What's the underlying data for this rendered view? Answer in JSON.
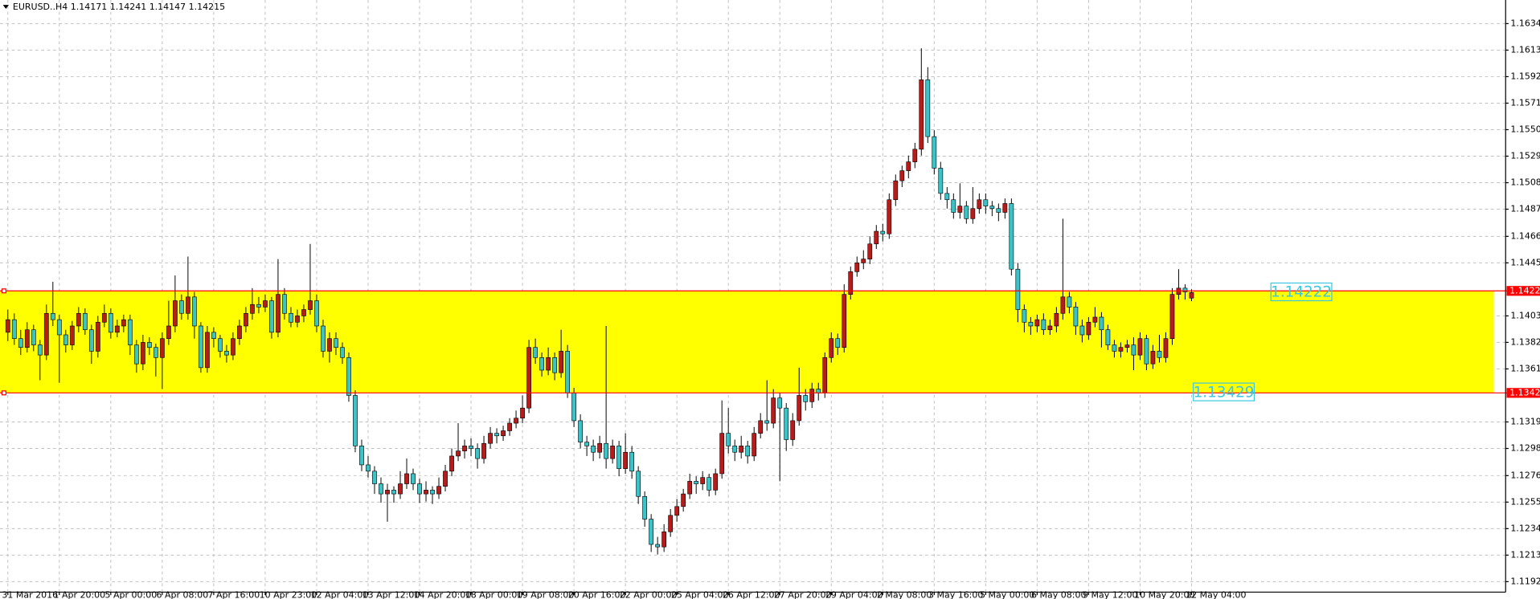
{
  "chart_data": {
    "type": "candlestick",
    "title": "EURUSD..H4  1.14171 1.14241 1.14147 1.14215",
    "up_color": "#b71c1c",
    "down_color": "#3cc3c8",
    "wick_color": "#000000",
    "grid": true,
    "ylim": [
      1.11842,
      1.16532
    ],
    "yticks": [
      1.16345,
      1.16135,
      1.15925,
      1.15715,
      1.15505,
      1.15295,
      1.15085,
      1.14875,
      {
        "value": 1.1466,
        "label": "1.14660"
      },
      {
        "value": 1.1445,
        "label": "1.14450"
      },
      {
        "value": 1.1403,
        "label": "1.14030"
      },
      {
        "value": 1.1382,
        "label": "1.13820"
      },
      {
        "value": 1.1361,
        "label": "1.13610"
      },
      {
        "value": 1.1319,
        "label": "1.13190"
      },
      {
        "value": 1.1298,
        "label": "1.12980"
      },
      1.12765,
      1.12555,
      1.12345,
      1.12135,
      1.11925
    ],
    "levels": [
      1.14228,
      {
        "value": 1.1342,
        "label": "1.13420"
      }
    ],
    "level_color": "#ff0000",
    "zone_color": "#ffff00",
    "annotations": [
      "1.14222",
      "1.13429"
    ],
    "annotation_color": "#3cc8e0",
    "categories": [
      "31 Mar 2016",
      null,
      null,
      null,
      null,
      null,
      null,
      null,
      "1 Apr 20:00",
      null,
      null,
      null,
      null,
      null,
      null,
      null,
      "5 Apr 00:00",
      null,
      null,
      null,
      null,
      null,
      null,
      null,
      "6 Apr 08:00",
      null,
      null,
      null,
      null,
      null,
      null,
      null,
      "7 Apr 16:00",
      null,
      null,
      null,
      null,
      null,
      null,
      null,
      "10 Apr 23:00",
      null,
      null,
      null,
      null,
      null,
      null,
      null,
      "12 Apr 04:00",
      null,
      null,
      null,
      null,
      null,
      null,
      null,
      "13 Apr 12:00",
      null,
      null,
      null,
      null,
      null,
      null,
      null,
      "14 Apr 20:00",
      null,
      null,
      null,
      null,
      null,
      null,
      null,
      "18 Apr 00:00",
      null,
      null,
      null,
      null,
      null,
      null,
      null,
      "19 Apr 08:00",
      null,
      null,
      null,
      null,
      null,
      null,
      null,
      "20 Apr 16:00",
      null,
      null,
      null,
      null,
      null,
      null,
      null,
      "22 Apr 00:00",
      null,
      null,
      null,
      null,
      null,
      null,
      null,
      "25 Apr 04:00",
      null,
      null,
      null,
      null,
      null,
      null,
      null,
      "26 Apr 12:00",
      null,
      null,
      null,
      null,
      null,
      null,
      null,
      "27 Apr 20:00",
      null,
      null,
      null,
      null,
      null,
      null,
      null,
      "29 Apr 04:00",
      null,
      null,
      null,
      null,
      null,
      null,
      null,
      "2 May 08:00",
      null,
      null,
      null,
      null,
      null,
      null,
      null,
      "3 May 16:00",
      null,
      null,
      null,
      null,
      null,
      null,
      null,
      "5 May 00:00",
      null,
      null,
      null,
      null,
      null,
      null,
      null,
      "6 May 08:00",
      null,
      null,
      null,
      null,
      null,
      null,
      null,
      "9 May 12:00",
      null,
      null,
      null,
      null,
      null,
      null,
      null,
      "10 May 20:00",
      null,
      null,
      null,
      null,
      null,
      null,
      null,
      "12 May 04:00"
    ],
    "ohlc": [
      [
        1.139,
        1.1408,
        1.1383,
        1.14
      ],
      [
        1.14,
        1.1405,
        1.138,
        1.1385
      ],
      [
        1.1385,
        1.1392,
        1.1372,
        1.1378
      ],
      [
        1.1378,
        1.1398,
        1.1374,
        1.1392
      ],
      [
        1.1392,
        1.1396,
        1.1375,
        1.138
      ],
      [
        1.138,
        1.1384,
        1.1352,
        1.1372
      ],
      [
        1.1372,
        1.1412,
        1.1368,
        1.1405
      ],
      [
        1.1405,
        1.143,
        1.1395,
        1.14
      ],
      [
        1.14,
        1.1404,
        1.135,
        1.1388
      ],
      [
        1.1388,
        1.1392,
        1.1374,
        1.138
      ],
      [
        1.138,
        1.1399,
        1.1376,
        1.1395
      ],
      [
        1.1395,
        1.141,
        1.139,
        1.1405
      ],
      [
        1.1405,
        1.1409,
        1.1388,
        1.1392
      ],
      [
        1.1392,
        1.1396,
        1.1365,
        1.1375
      ],
      [
        1.1375,
        1.1403,
        1.137,
        1.1398
      ],
      [
        1.1398,
        1.1412,
        1.1394,
        1.1405
      ],
      [
        1.1405,
        1.1409,
        1.1385,
        1.139
      ],
      [
        1.139,
        1.14,
        1.1386,
        1.1395
      ],
      [
        1.1395,
        1.1404,
        1.139,
        1.14
      ],
      [
        1.14,
        1.1404,
        1.1372,
        1.138
      ],
      [
        1.138,
        1.1384,
        1.1358,
        1.1365
      ],
      [
        1.1365,
        1.1388,
        1.136,
        1.1382
      ],
      [
        1.1382,
        1.1386,
        1.1372,
        1.1378
      ],
      [
        1.1378,
        1.1381,
        1.1355,
        1.137
      ],
      [
        1.137,
        1.139,
        1.1345,
        1.1385
      ],
      [
        1.1385,
        1.1415,
        1.138,
        1.1395
      ],
      [
        1.1395,
        1.1435,
        1.139,
        1.1415
      ],
      [
        1.1415,
        1.142,
        1.14,
        1.1405
      ],
      [
        1.1405,
        1.145,
        1.14,
        1.1418
      ],
      [
        1.1418,
        1.1422,
        1.1385,
        1.1395
      ],
      [
        1.1395,
        1.1398,
        1.1358,
        1.1362
      ],
      [
        1.1362,
        1.1395,
        1.1358,
        1.139
      ],
      [
        1.139,
        1.1394,
        1.1378,
        1.1385
      ],
      [
        1.1385,
        1.1388,
        1.137,
        1.1375
      ],
      [
        1.1375,
        1.138,
        1.1366,
        1.1372
      ],
      [
        1.1372,
        1.139,
        1.1368,
        1.1385
      ],
      [
        1.1385,
        1.14,
        1.138,
        1.1395
      ],
      [
        1.1395,
        1.141,
        1.139,
        1.1405
      ],
      [
        1.1405,
        1.1425,
        1.14,
        1.1412
      ],
      [
        1.1412,
        1.1418,
        1.1405,
        1.141
      ],
      [
        1.141,
        1.142,
        1.1406,
        1.1415
      ],
      [
        1.1415,
        1.1418,
        1.1385,
        1.139
      ],
      [
        1.139,
        1.1448,
        1.1386,
        1.142
      ],
      [
        1.142,
        1.1425,
        1.14,
        1.1405
      ],
      [
        1.1405,
        1.141,
        1.1394,
        1.1398
      ],
      [
        1.1398,
        1.1408,
        1.1394,
        1.1403
      ],
      [
        1.1403,
        1.1412,
        1.1398,
        1.1408
      ],
      [
        1.1408,
        1.146,
        1.1404,
        1.1415
      ],
      [
        1.1415,
        1.142,
        1.139,
        1.1395
      ],
      [
        1.1395,
        1.14,
        1.137,
        1.1375
      ],
      [
        1.1375,
        1.139,
        1.1366,
        1.1385
      ],
      [
        1.1385,
        1.139,
        1.1372,
        1.1378
      ],
      [
        1.1378,
        1.1382,
        1.1365,
        1.137
      ],
      [
        1.137,
        1.1374,
        1.1335,
        1.134
      ],
      [
        1.134,
        1.1344,
        1.1295,
        1.13
      ],
      [
        1.13,
        1.1305,
        1.128,
        1.1285
      ],
      [
        1.1285,
        1.1292,
        1.1275,
        1.128
      ],
      [
        1.128,
        1.1284,
        1.1262,
        1.127
      ],
      [
        1.127,
        1.1275,
        1.1255,
        1.1262
      ],
      [
        1.1262,
        1.127,
        1.124,
        1.1265
      ],
      [
        1.1265,
        1.1268,
        1.1255,
        1.1262
      ],
      [
        1.1262,
        1.128,
        1.1258,
        1.127
      ],
      [
        1.127,
        1.129,
        1.1266,
        1.1278
      ],
      [
        1.1278,
        1.1282,
        1.1265,
        1.127
      ],
      [
        1.127,
        1.1274,
        1.1255,
        1.1262
      ],
      [
        1.1262,
        1.1272,
        1.1256,
        1.1265
      ],
      [
        1.1265,
        1.1268,
        1.1254,
        1.1262
      ],
      [
        1.1262,
        1.1275,
        1.1258,
        1.1268
      ],
      [
        1.1268,
        1.1285,
        1.1264,
        1.128
      ],
      [
        1.128,
        1.1298,
        1.1276,
        1.1292
      ],
      [
        1.1292,
        1.1318,
        1.1288,
        1.1296
      ],
      [
        1.1296,
        1.1305,
        1.129,
        1.13
      ],
      [
        1.13,
        1.1306,
        1.1292,
        1.1298
      ],
      [
        1.1298,
        1.1302,
        1.1282,
        1.129
      ],
      [
        1.129,
        1.1308,
        1.1286,
        1.1302
      ],
      [
        1.1302,
        1.1315,
        1.1298,
        1.131
      ],
      [
        1.131,
        1.1314,
        1.1302,
        1.1308
      ],
      [
        1.1308,
        1.1316,
        1.1304,
        1.1312
      ],
      [
        1.1312,
        1.1322,
        1.1308,
        1.1318
      ],
      [
        1.1318,
        1.1328,
        1.1314,
        1.1322
      ],
      [
        1.1322,
        1.134,
        1.1318,
        1.133
      ],
      [
        1.133,
        1.1384,
        1.1326,
        1.1378
      ],
      [
        1.1378,
        1.1385,
        1.1365,
        1.137
      ],
      [
        1.137,
        1.1374,
        1.1355,
        1.136
      ],
      [
        1.136,
        1.1378,
        1.1356,
        1.137
      ],
      [
        1.137,
        1.1374,
        1.1352,
        1.1358
      ],
      [
        1.1358,
        1.1392,
        1.1354,
        1.1375
      ],
      [
        1.1375,
        1.138,
        1.1338,
        1.1342
      ],
      [
        1.1342,
        1.1346,
        1.1315,
        1.132
      ],
      [
        1.132,
        1.1325,
        1.1298,
        1.1303
      ],
      [
        1.1303,
        1.1308,
        1.1292,
        1.13
      ],
      [
        1.13,
        1.1305,
        1.1288,
        1.1295
      ],
      [
        1.1295,
        1.1308,
        1.129,
        1.1302
      ],
      [
        1.1302,
        1.1395,
        1.1282,
        1.129
      ],
      [
        1.129,
        1.1305,
        1.1286,
        1.13
      ],
      [
        1.13,
        1.1304,
        1.1276,
        1.1282
      ],
      [
        1.1282,
        1.131,
        1.1278,
        1.1295
      ],
      [
        1.1295,
        1.13,
        1.1274,
        1.128
      ],
      [
        1.128,
        1.1284,
        1.1254,
        1.126
      ],
      [
        1.126,
        1.1264,
        1.1236,
        1.1242
      ],
      [
        1.1242,
        1.1246,
        1.1216,
        1.1222
      ],
      [
        1.1222,
        1.1228,
        1.1214,
        1.122
      ],
      [
        1.122,
        1.1238,
        1.1216,
        1.1232
      ],
      [
        1.1232,
        1.125,
        1.1228,
        1.1245
      ],
      [
        1.1245,
        1.1258,
        1.124,
        1.1252
      ],
      [
        1.1252,
        1.1266,
        1.1248,
        1.1262
      ],
      [
        1.1262,
        1.1278,
        1.1258,
        1.1272
      ],
      [
        1.1272,
        1.1276,
        1.1262,
        1.127
      ],
      [
        1.127,
        1.128,
        1.1265,
        1.1275
      ],
      [
        1.1275,
        1.1278,
        1.126,
        1.1265
      ],
      [
        1.1265,
        1.1282,
        1.1261,
        1.1278
      ],
      [
        1.1278,
        1.1336,
        1.1274,
        1.131
      ],
      [
        1.131,
        1.133,
        1.1294,
        1.13
      ],
      [
        1.13,
        1.1305,
        1.1288,
        1.1295
      ],
      [
        1.1295,
        1.1308,
        1.129,
        1.13
      ],
      [
        1.13,
        1.1304,
        1.1286,
        1.1292
      ],
      [
        1.1292,
        1.1315,
        1.1288,
        1.131
      ],
      [
        1.131,
        1.1326,
        1.1306,
        1.132
      ],
      [
        1.132,
        1.1352,
        1.1312,
        1.1318
      ],
      [
        1.1318,
        1.1345,
        1.1314,
        1.1338
      ],
      [
        1.1338,
        1.1342,
        1.1272,
        1.133
      ],
      [
        1.133,
        1.1334,
        1.1296,
        1.1305
      ],
      [
        1.1305,
        1.1326,
        1.13,
        1.132
      ],
      [
        1.132,
        1.1362,
        1.1316,
        1.134
      ],
      [
        1.134,
        1.1345,
        1.1328,
        1.1335
      ],
      [
        1.1335,
        1.135,
        1.133,
        1.1345
      ],
      [
        1.1345,
        1.135,
        1.1336,
        1.1342
      ],
      [
        1.1342,
        1.1374,
        1.1338,
        1.137
      ],
      [
        1.137,
        1.139,
        1.1366,
        1.1385
      ],
      [
        1.1385,
        1.1389,
        1.1372,
        1.1378
      ],
      [
        1.1378,
        1.1428,
        1.1374,
        1.142
      ],
      [
        1.142,
        1.1442,
        1.1416,
        1.1438
      ],
      [
        1.1438,
        1.145,
        1.1434,
        1.1445
      ],
      [
        1.1445,
        1.1455,
        1.144,
        1.1448
      ],
      [
        1.1448,
        1.1466,
        1.1444,
        1.146
      ],
      [
        1.146,
        1.1475,
        1.1456,
        1.147
      ],
      [
        1.147,
        1.1476,
        1.1462,
        1.1468
      ],
      [
        1.1468,
        1.15,
        1.1464,
        1.1495
      ],
      [
        1.1495,
        1.1515,
        1.149,
        1.151
      ],
      [
        1.151,
        1.1522,
        1.1505,
        1.1518
      ],
      [
        1.1518,
        1.153,
        1.1512,
        1.1525
      ],
      [
        1.1525,
        1.154,
        1.152,
        1.1535
      ],
      [
        1.1535,
        1.1615,
        1.153,
        1.159
      ],
      [
        1.159,
        1.16,
        1.154,
        1.1545
      ],
      [
        1.1545,
        1.155,
        1.1515,
        1.152
      ],
      [
        1.152,
        1.1525,
        1.1495,
        1.15
      ],
      [
        1.15,
        1.1505,
        1.1488,
        1.1495
      ],
      [
        1.1495,
        1.15,
        1.148,
        1.1485
      ],
      [
        1.1485,
        1.1508,
        1.148,
        1.149
      ],
      [
        1.149,
        1.1494,
        1.1476,
        1.148
      ],
      [
        1.148,
        1.1505,
        1.1476,
        1.1488
      ],
      [
        1.1488,
        1.15,
        1.1484,
        1.1495
      ],
      [
        1.1495,
        1.15,
        1.1484,
        1.149
      ],
      [
        1.149,
        1.1494,
        1.1482,
        1.1488
      ],
      [
        1.1488,
        1.1492,
        1.1478,
        1.1485
      ],
      [
        1.1485,
        1.1496,
        1.148,
        1.1492
      ],
      [
        1.1492,
        1.1496,
        1.1435,
        1.144
      ],
      [
        1.144,
        1.1445,
        1.1398,
        1.1408
      ],
      [
        1.1408,
        1.1412,
        1.139,
        1.1398
      ],
      [
        1.1398,
        1.1402,
        1.1388,
        1.1395
      ],
      [
        1.1395,
        1.1404,
        1.139,
        1.14
      ],
      [
        1.14,
        1.1405,
        1.1388,
        1.1392
      ],
      [
        1.1392,
        1.14,
        1.1388,
        1.1395
      ],
      [
        1.1395,
        1.141,
        1.139,
        1.1405
      ],
      [
        1.1405,
        1.148,
        1.14,
        1.1418
      ],
      [
        1.1418,
        1.1422,
        1.1405,
        1.141
      ],
      [
        1.141,
        1.1414,
        1.1388,
        1.1395
      ],
      [
        1.1395,
        1.14,
        1.1382,
        1.1388
      ],
      [
        1.1388,
        1.1402,
        1.1384,
        1.1398
      ],
      [
        1.1398,
        1.141,
        1.1394,
        1.1402
      ],
      [
        1.1402,
        1.1406,
        1.1378,
        1.1392
      ],
      [
        1.1392,
        1.1396,
        1.1376,
        1.138
      ],
      [
        1.138,
        1.1384,
        1.137,
        1.1375
      ],
      [
        1.1375,
        1.1382,
        1.137,
        1.1378
      ],
      [
        1.1378,
        1.1384,
        1.1374,
        1.138
      ],
      [
        1.138,
        1.1386,
        1.136,
        1.1372
      ],
      [
        1.1372,
        1.139,
        1.1368,
        1.1385
      ],
      [
        1.1385,
        1.1388,
        1.136,
        1.1365
      ],
      [
        1.1365,
        1.138,
        1.1361,
        1.1375
      ],
      [
        1.1375,
        1.1388,
        1.1366,
        1.137
      ],
      [
        1.137,
        1.139,
        1.1366,
        1.1385
      ],
      [
        1.1385,
        1.1425,
        1.138,
        1.142
      ],
      [
        1.142,
        1.144,
        1.1416,
        1.1425
      ],
      [
        1.1425,
        1.1428,
        1.1416,
        1.1422
      ],
      [
        1.14171,
        1.14241,
        1.14147,
        1.14215
      ]
    ]
  }
}
